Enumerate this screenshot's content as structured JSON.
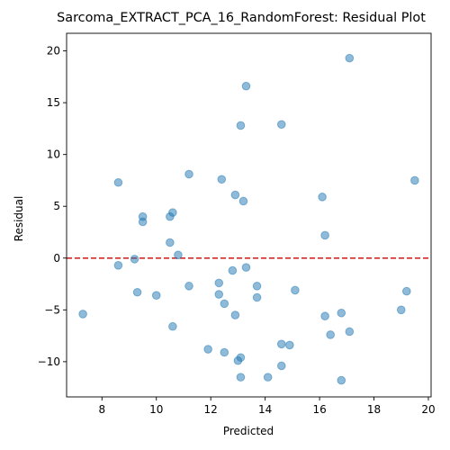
{
  "chart_data": {
    "type": "scatter",
    "title": "Sarcoma_EXTRACT_PCA_16_RandomForest: Residual Plot",
    "xlabel": "Predicted",
    "ylabel": "Residual",
    "xlim": [
      6.7,
      20.1
    ],
    "ylim": [
      -13.4,
      21.7
    ],
    "x_ticks": [
      8,
      10,
      12,
      14,
      16,
      18,
      20
    ],
    "y_ticks": [
      -10,
      -5,
      0,
      5,
      10,
      15,
      20
    ],
    "reference_line": {
      "y": 0,
      "color": "#d62728",
      "style": "dashed"
    },
    "point_color": "#1f77b4",
    "points": [
      {
        "x": 17.1,
        "y": 19.3
      },
      {
        "x": 13.3,
        "y": 16.6
      },
      {
        "x": 13.1,
        "y": 12.8
      },
      {
        "x": 14.6,
        "y": 12.9
      },
      {
        "x": 11.2,
        "y": 8.1
      },
      {
        "x": 8.6,
        "y": 7.3
      },
      {
        "x": 12.4,
        "y": 7.6
      },
      {
        "x": 19.5,
        "y": 7.5
      },
      {
        "x": 12.9,
        "y": 6.1
      },
      {
        "x": 13.2,
        "y": 5.5
      },
      {
        "x": 16.1,
        "y": 5.9
      },
      {
        "x": 10.6,
        "y": 4.4
      },
      {
        "x": 9.5,
        "y": 4.0
      },
      {
        "x": 10.5,
        "y": 4.0
      },
      {
        "x": 9.5,
        "y": 3.5
      },
      {
        "x": 16.2,
        "y": 2.2
      },
      {
        "x": 10.5,
        "y": 1.5
      },
      {
        "x": 10.8,
        "y": 0.3
      },
      {
        "x": 9.2,
        "y": -0.1
      },
      {
        "x": 8.6,
        "y": -0.7
      },
      {
        "x": 13.3,
        "y": -0.9
      },
      {
        "x": 12.8,
        "y": -1.2
      },
      {
        "x": 12.3,
        "y": -2.4
      },
      {
        "x": 11.2,
        "y": -2.7
      },
      {
        "x": 13.7,
        "y": -2.7
      },
      {
        "x": 15.1,
        "y": -3.1
      },
      {
        "x": 19.2,
        "y": -3.2
      },
      {
        "x": 9.3,
        "y": -3.3
      },
      {
        "x": 12.3,
        "y": -3.5
      },
      {
        "x": 10.0,
        "y": -3.6
      },
      {
        "x": 13.7,
        "y": -3.8
      },
      {
        "x": 12.5,
        "y": -4.4
      },
      {
        "x": 19.0,
        "y": -5.0
      },
      {
        "x": 16.8,
        "y": -5.3
      },
      {
        "x": 7.3,
        "y": -5.4
      },
      {
        "x": 12.9,
        "y": -5.5
      },
      {
        "x": 16.2,
        "y": -5.6
      },
      {
        "x": 10.6,
        "y": -6.6
      },
      {
        "x": 17.1,
        "y": -7.1
      },
      {
        "x": 16.4,
        "y": -7.4
      },
      {
        "x": 14.6,
        "y": -8.3
      },
      {
        "x": 14.9,
        "y": -8.4
      },
      {
        "x": 11.9,
        "y": -8.8
      },
      {
        "x": 12.5,
        "y": -9.1
      },
      {
        "x": 13.1,
        "y": -9.6
      },
      {
        "x": 13.0,
        "y": -9.9
      },
      {
        "x": 14.6,
        "y": -10.4
      },
      {
        "x": 13.1,
        "y": -11.5
      },
      {
        "x": 14.1,
        "y": -11.5
      },
      {
        "x": 16.8,
        "y": -11.8
      }
    ]
  }
}
